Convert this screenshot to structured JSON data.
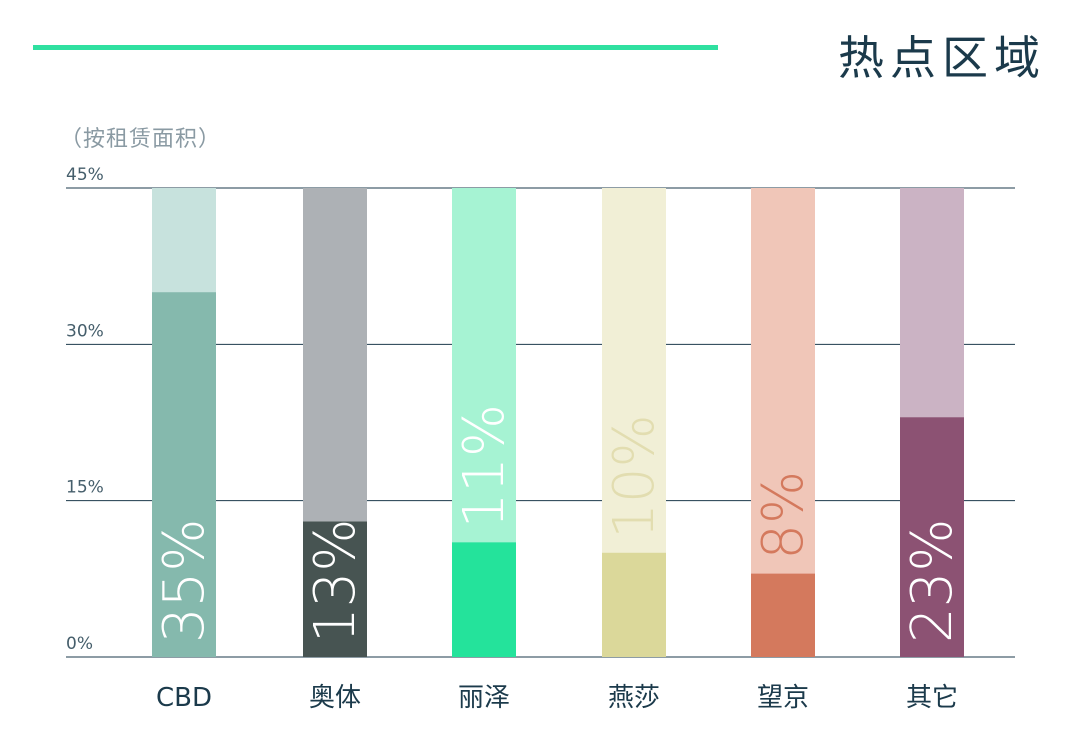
{
  "header": {
    "title": "热点区域",
    "accent_color": "#2fe0a0"
  },
  "chart_data": {
    "type": "bar",
    "subtitle": "（按租赁面积）",
    "categories": [
      "CBD",
      "奥体",
      "丽泽",
      "燕莎",
      "望京",
      "其它"
    ],
    "values": [
      35,
      13,
      11,
      10,
      8,
      23
    ],
    "value_labels": [
      "35%",
      "13%",
      "11%",
      "10%",
      "8%",
      "23%"
    ],
    "yticks": [
      0,
      15,
      30,
      45
    ],
    "ytick_labels": [
      "0%",
      "15%",
      "30%",
      "45%"
    ],
    "ylim": [
      0,
      45
    ],
    "grid": true,
    "legend": "none",
    "colors": {
      "fill": [
        "#85b9ad",
        "#475452",
        "#24e39b",
        "#dbd89a",
        "#d4795d",
        "#8c5273"
      ],
      "track": [
        "#c7e2dd",
        "#adb1b5",
        "#a6f3d3",
        "#f1efd6",
        "#f0c6b8",
        "#cbb3c4"
      ],
      "value_text": [
        "#ffffff",
        "#ffffff",
        "#ffffff",
        "#ffffff",
        "#ffffff",
        "#ffffff"
      ],
      "value_text_inside_track": [
        "#ffffff",
        "#ffffff",
        "#ffffff",
        "#e2ddb0",
        "#d4795d",
        "#ffffff"
      ]
    }
  }
}
